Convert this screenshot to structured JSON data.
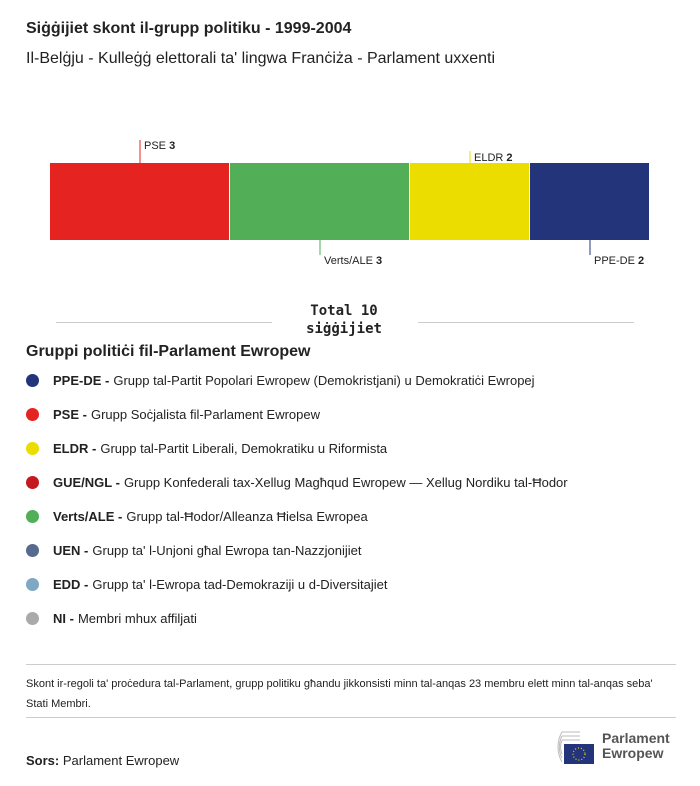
{
  "header": {
    "title": "Siġġijiet skont il-grupp politiku - 1999-2004",
    "subtitle": "Il-Belġju - Kulleġġ elettorali ta' lingwa Franċiża - Parlament uxxenti"
  },
  "chart_data": {
    "type": "bar",
    "orientation": "stacked-horizontal",
    "categories": [
      "PSE",
      "Verts/ALE",
      "ELDR",
      "PPE-DE"
    ],
    "values": [
      3,
      3,
      2,
      2
    ],
    "colors": [
      "#e52421",
      "#52ae57",
      "#ecdd00",
      "#24347b"
    ],
    "total_label": "Total 10",
    "total_unit": "siġġijiet"
  },
  "legend": {
    "title": "Gruppi politiċi fil-Parlament Ewropew",
    "items": [
      {
        "abbr": "PPE-DE -",
        "name": "Grupp tal-Partit Popolari Ewropew (Demokristjani) u Demokratiċi Ewropej",
        "color": "#24347b"
      },
      {
        "abbr": "PSE -",
        "name": "Grupp Soċjalista fil-Parlament Ewropew",
        "color": "#e52421"
      },
      {
        "abbr": "ELDR -",
        "name": "Grupp tal-Partit Liberali, Demokratiku u Riformista",
        "color": "#ecdd00"
      },
      {
        "abbr": "GUE/NGL -",
        "name": "Grupp Konfederali tax-Xellug Magħqud Ewropew — Xellug Nordiku tal-Ħodor",
        "color": "#c4191d"
      },
      {
        "abbr": "Verts/ALE -",
        "name": "Grupp tal-Ħodor/Alleanza Ħielsa Ewropea",
        "color": "#52ae57"
      },
      {
        "abbr": "UEN -",
        "name": "Grupp ta' l-Unjoni għal Ewropa tan-Nazzjonijiet",
        "color": "#56698f"
      },
      {
        "abbr": "EDD -",
        "name": "Grupp ta' l-Ewropa tad-Demokraziji u d-Diversitajiet",
        "color": "#7ea8c4"
      },
      {
        "abbr": "NI -",
        "name": "Membri mhux affiljati",
        "color": "#aaaaaa"
      }
    ]
  },
  "footer": {
    "note": "Skont ir-regoli ta' proċedura tal-Parlament, grupp politiku għandu jikkonsisti minn tal-anqas 23 membru elett minn tal-anqas seba' Stati Membri.",
    "source_label": "Sors:",
    "source": "Parlament Ewropew",
    "logo_line1": "Parlament",
    "logo_line2": "Ewropew"
  }
}
